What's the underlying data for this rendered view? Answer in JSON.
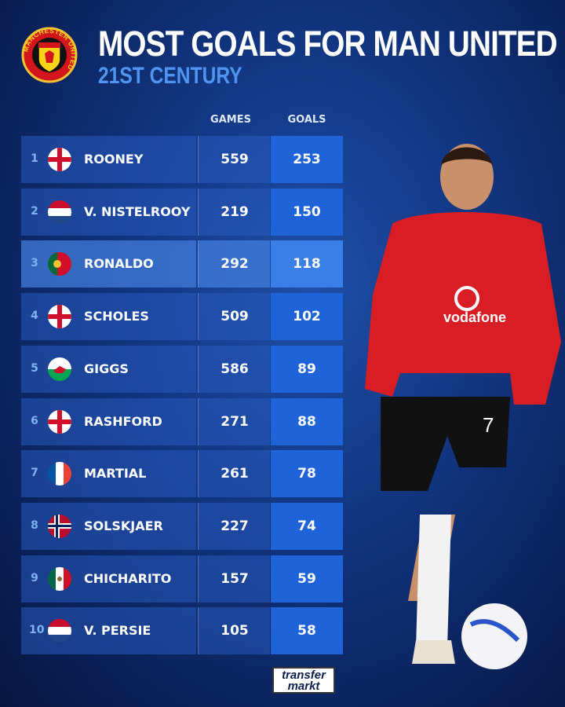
{
  "header": {
    "title": "MOST GOALS FOR MAN UNITED",
    "subtitle": "21ST CENTURY",
    "crest_text": "MANCHESTER UNITED"
  },
  "columns": {
    "games": "GAMES",
    "goals": "GOALS"
  },
  "colors": {
    "accent": "#4f95f0",
    "goals_cell": "#1f63d8",
    "background": "#123681"
  },
  "highlighted_rank": 3,
  "chart_data": {
    "type": "table",
    "title": "MOST GOALS FOR MAN UNITED",
    "subtitle": "21ST CENTURY",
    "columns": [
      "",
      "",
      "",
      "GAMES",
      "GOALS"
    ],
    "rows": [
      {
        "rank": "1",
        "flag": "england",
        "name": "ROONEY",
        "games": "559",
        "goals": "253"
      },
      {
        "rank": "2",
        "flag": "netherlands",
        "name": "V. NISTELROOY",
        "games": "219",
        "goals": "150"
      },
      {
        "rank": "3",
        "flag": "portugal",
        "name": "RONALDO",
        "games": "292",
        "goals": "118"
      },
      {
        "rank": "4",
        "flag": "england",
        "name": "SCHOLES",
        "games": "509",
        "goals": "102"
      },
      {
        "rank": "5",
        "flag": "wales",
        "name": "GIGGS",
        "games": "586",
        "goals": "89"
      },
      {
        "rank": "6",
        "flag": "england",
        "name": "RASHFORD",
        "games": "271",
        "goals": "88"
      },
      {
        "rank": "7",
        "flag": "france",
        "name": "MARTIAL",
        "games": "261",
        "goals": "78"
      },
      {
        "rank": "8",
        "flag": "norway",
        "name": "SOLSKJAER",
        "games": "227",
        "goals": "74"
      },
      {
        "rank": "9",
        "flag": "mexico",
        "name": "CHICHARITO",
        "games": "157",
        "goals": "59"
      },
      {
        "rank": "10",
        "flag": "netherlands",
        "name": "V. PERSIE",
        "games": "105",
        "goals": "58"
      }
    ]
  },
  "player_image": {
    "shirt_sponsor": "vodafone",
    "shirt_number": "7"
  },
  "footer": {
    "logo_line1": "transfer",
    "logo_line2": "markt"
  }
}
